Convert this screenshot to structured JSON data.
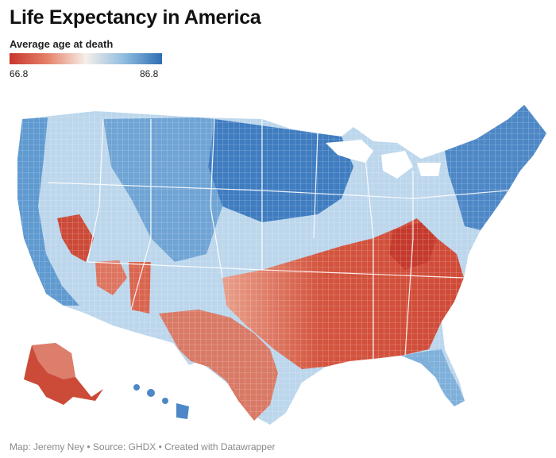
{
  "title": "Life Expectancy in America",
  "legend": {
    "title": "Average age at death",
    "min_label": "66.8",
    "max_label": "86.8",
    "color_low": "#c8362b",
    "color_mid": "#f6efe9",
    "color_high": "#2e6eb3"
  },
  "footer": {
    "credit": "Map: Jeremy Ney • Source: GHDX • Created with Datawrapper"
  }
}
